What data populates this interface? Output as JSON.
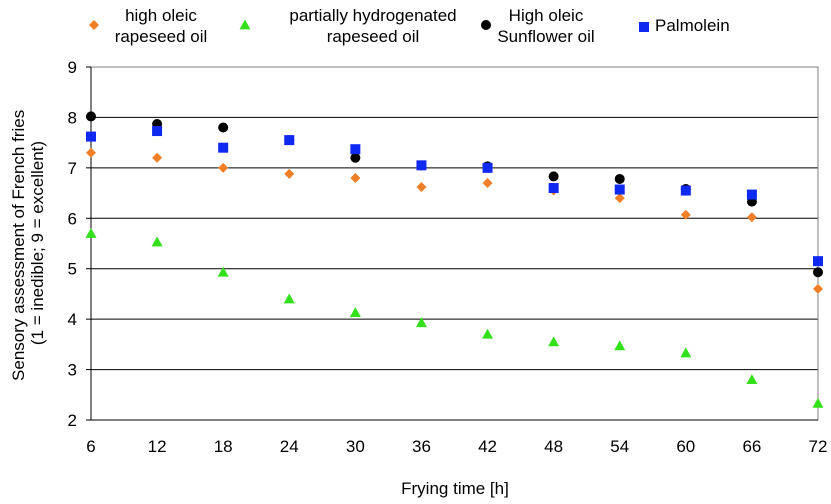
{
  "chart_data": {
    "type": "scatter",
    "title": "",
    "xlabel": "Frying time [h]",
    "ylabel_lines": [
      "Sensory assessment of French fries",
      "(1 = inedible; 9 = excellent)"
    ],
    "x": [
      6,
      12,
      18,
      24,
      30,
      36,
      42,
      48,
      54,
      60,
      66,
      72
    ],
    "x_tick_labels": [
      "6",
      "12",
      "18",
      "24",
      "30",
      "36",
      "42",
      "48",
      "54",
      "60",
      "66",
      "72"
    ],
    "ylim": [
      2,
      9
    ],
    "y_ticks": [
      2,
      3,
      4,
      5,
      6,
      7,
      8,
      9
    ],
    "grid": "horizontal",
    "legend_position": "top",
    "series": [
      {
        "name_lines": [
          "high oleic",
          "rapeseed oil"
        ],
        "marker": "diamond",
        "color": "#F07F27",
        "points": [
          [
            6,
            7.3
          ],
          [
            12,
            7.2
          ],
          [
            18,
            7.0
          ],
          [
            24,
            6.88
          ],
          [
            30,
            6.8
          ],
          [
            36,
            6.62
          ],
          [
            42,
            6.7
          ],
          [
            48,
            6.55
          ],
          [
            54,
            6.4
          ],
          [
            60,
            6.07
          ],
          [
            66,
            6.02
          ],
          [
            72,
            4.6
          ]
        ]
      },
      {
        "name_lines": [
          "partially hydrogenated",
          "rapeseed oil"
        ],
        "marker": "triangle",
        "color": "#33E01A",
        "points": [
          [
            6,
            5.7
          ],
          [
            12,
            5.53
          ],
          [
            18,
            4.93
          ],
          [
            24,
            4.4
          ],
          [
            30,
            4.13
          ],
          [
            36,
            3.93
          ],
          [
            42,
            3.7
          ],
          [
            48,
            3.55
          ],
          [
            54,
            3.47
          ],
          [
            60,
            3.33
          ],
          [
            66,
            2.8
          ],
          [
            72,
            2.33
          ]
        ]
      },
      {
        "name_lines": [
          "High oleic",
          "Sunflower oil"
        ],
        "marker": "circle",
        "color": "#000000",
        "points": [
          [
            6,
            8.02
          ],
          [
            12,
            7.87
          ],
          [
            18,
            7.8
          ],
          [
            24,
            7.55
          ],
          [
            30,
            7.2
          ],
          [
            36,
            7.05
          ],
          [
            42,
            7.03
          ],
          [
            48,
            6.83
          ],
          [
            54,
            6.78
          ],
          [
            60,
            6.58
          ],
          [
            66,
            6.33
          ],
          [
            72,
            4.93
          ]
        ]
      },
      {
        "name_lines": [
          "Palmolein"
        ],
        "marker": "square",
        "color": "#0F29F0",
        "points": [
          [
            6,
            7.62
          ],
          [
            12,
            7.73
          ],
          [
            18,
            7.4
          ],
          [
            24,
            7.55
          ],
          [
            30,
            7.37
          ],
          [
            36,
            7.05
          ],
          [
            42,
            7.0
          ],
          [
            48,
            6.6
          ],
          [
            54,
            6.57
          ],
          [
            60,
            6.55
          ],
          [
            66,
            6.47
          ],
          [
            72,
            5.15
          ]
        ]
      }
    ]
  }
}
